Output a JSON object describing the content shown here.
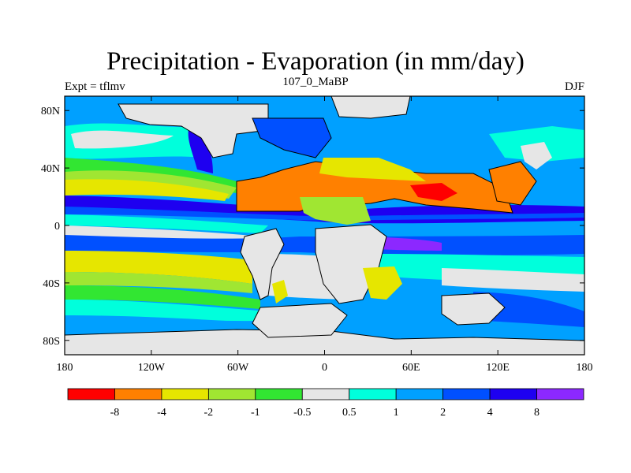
{
  "title": "Precipitation - Evaporation (in mm/day)",
  "subtitle": "107_0_MaBP",
  "left_label": "Expt = tflmv",
  "right_label": "DJF",
  "axes": {
    "x_ticks": [
      "180",
      "120W",
      "60W",
      "0",
      "60E",
      "120E",
      "180"
    ],
    "y_ticks": [
      "80N",
      "40N",
      "0",
      "40S",
      "80S"
    ]
  },
  "colorbar": {
    "colors": [
      "#ff0000",
      "#ff8000",
      "#e6e600",
      "#a0e632",
      "#32e632",
      "#e6e6e6",
      "#00ffdc",
      "#00a0ff",
      "#0050ff",
      "#1e00f0",
      "#8c28ff"
    ],
    "labels": [
      "-8",
      "-4",
      "-2",
      "-1",
      "-0.5",
      "0.5",
      "1",
      "2",
      "4",
      "8"
    ]
  }
}
